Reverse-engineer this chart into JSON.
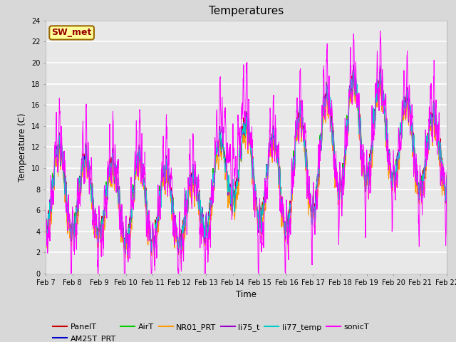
{
  "title": "Temperatures",
  "xlabel": "Time",
  "ylabel": "Temperature (C)",
  "ylim": [
    0,
    24
  ],
  "yticks": [
    0,
    2,
    4,
    6,
    8,
    10,
    12,
    14,
    16,
    18,
    20,
    22,
    24
  ],
  "n_days": 15,
  "n_points": 2160,
  "series_colors": {
    "PanelT": "#cc0000",
    "AM25T_PRT": "#0000cc",
    "AirT": "#00cc00",
    "NR01_PRT": "#ff9900",
    "li75_t": "#9900cc",
    "li77_temp": "#00cccc",
    "sonicT": "#ff00ff"
  },
  "annotation_text": "SW_met",
  "annotation_bg": "#ffff99",
  "annotation_border": "#996600",
  "annotation_color": "#990000",
  "plot_bg": "#e8e8e8",
  "fig_bg": "#d8d8d8",
  "title_fontsize": 11,
  "legend_fontsize": 8,
  "tick_fontsize": 7,
  "linewidth": 0.7
}
